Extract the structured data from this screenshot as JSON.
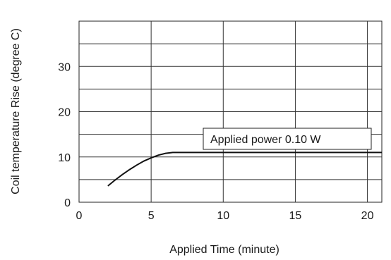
{
  "chart_data": {
    "type": "line",
    "xlabel": "Applied Time (minute)",
    "ylabel": "Coil temperature Rise (degree C)",
    "xlim": [
      0,
      21
    ],
    "ylim": [
      0,
      40
    ],
    "x_ticks": [
      0,
      5,
      10,
      15,
      20
    ],
    "y_ticks": [
      0,
      10,
      20,
      30
    ],
    "x_tick_labels": [
      "0",
      "5",
      "10",
      "15",
      "20"
    ],
    "y_tick_labels": [
      "0",
      "10",
      "20",
      "30"
    ],
    "grid": true,
    "grid_x_step": 5,
    "grid_y_step": 5,
    "annotation": "Applied power 0.10 W",
    "series": [
      {
        "x": [
          2.0,
          2.5,
          3.0,
          3.5,
          4.0,
          4.5,
          5.0,
          5.5,
          6.0,
          6.5,
          7.0,
          8.0,
          10.0,
          12.0,
          15.0,
          18.0,
          21.0
        ],
        "y": [
          3.6,
          4.9,
          6.1,
          7.2,
          8.2,
          9.1,
          9.8,
          10.4,
          10.8,
          11.0,
          11.0,
          11.0,
          11.0,
          11.0,
          11.0,
          11.0,
          11.0
        ]
      }
    ]
  }
}
